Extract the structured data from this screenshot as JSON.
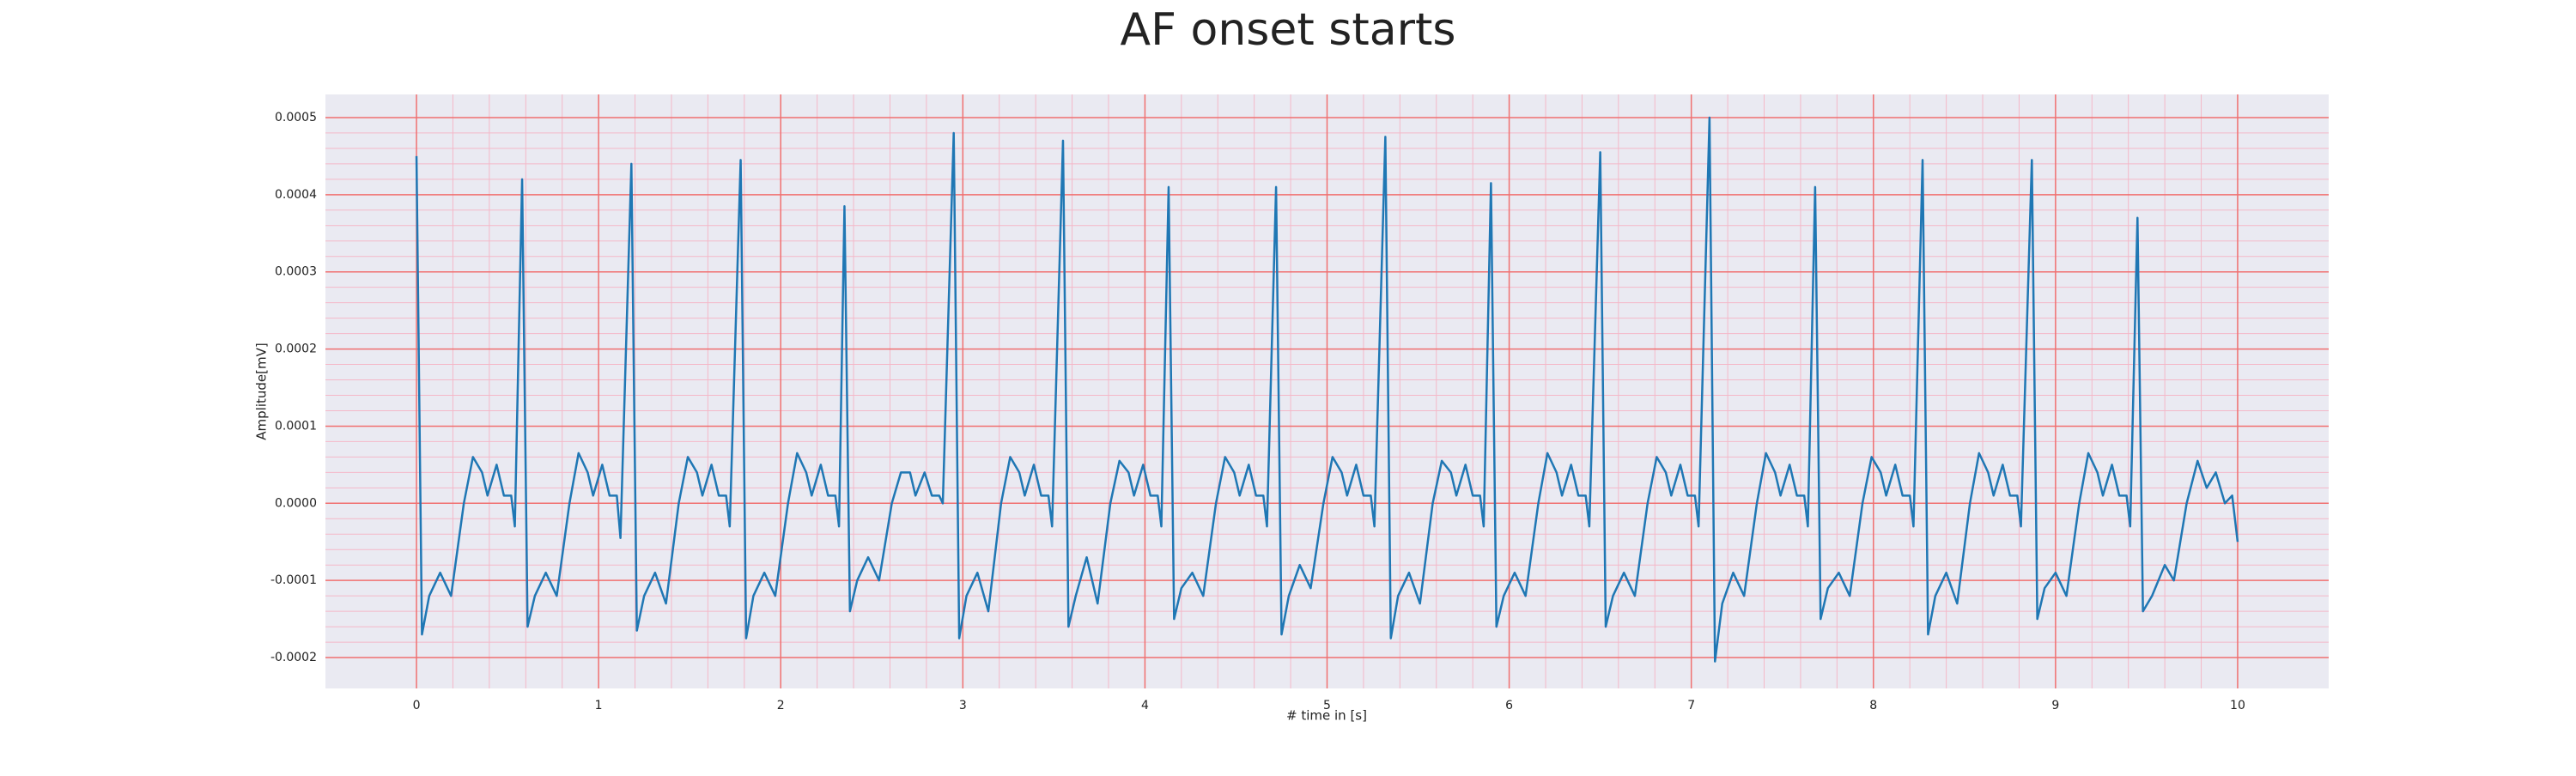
{
  "chart_data": {
    "type": "line",
    "title": "AF onset starts",
    "xlabel": "# time in [s]",
    "ylabel": "Amplitude[mV]",
    "background": "#eaeaf2",
    "grid": true,
    "grid_color": "#f07070",
    "minor_grid_color": "#f4b8c8",
    "minor_divisions": 5,
    "xlim": [
      -0.5,
      10.5
    ],
    "ylim": [
      -0.00024,
      0.00053
    ],
    "xticks": [
      0,
      1,
      2,
      3,
      4,
      5,
      6,
      7,
      8,
      9,
      10
    ],
    "yticks": [
      {
        "value": -0.0002,
        "label": "-0.0002"
      },
      {
        "value": -0.0001,
        "label": "-0.0001"
      },
      {
        "value": 0,
        "label": "0.0000"
      },
      {
        "value": 0.0001,
        "label": "0.0001"
      },
      {
        "value": 0.0002,
        "label": "0.0002"
      },
      {
        "value": 0.0003,
        "label": "0.0003"
      },
      {
        "value": 0.0004,
        "label": "0.0004"
      },
      {
        "value": 0.0005,
        "label": "0.0005"
      }
    ],
    "series": [
      {
        "color": "#1f77b4",
        "x": [
          0,
          0.03,
          0.07,
          0.13,
          0.19,
          0.26,
          0.31,
          0.36,
          0.39,
          0.44,
          0.48,
          0.52,
          0.54,
          0.58,
          0.61,
          0.65,
          0.71,
          0.77,
          0.84,
          0.89,
          0.94,
          0.97,
          1.02,
          1.06,
          1.1,
          1.12,
          1.18,
          1.21,
          1.25,
          1.31,
          1.37,
          1.44,
          1.49,
          1.54,
          1.57,
          1.62,
          1.66,
          1.7,
          1.72,
          1.78,
          1.81,
          1.85,
          1.91,
          1.97,
          2.04,
          2.09,
          2.14,
          2.17,
          2.22,
          2.26,
          2.3,
          2.32,
          2.35,
          2.38,
          2.42,
          2.48,
          2.54,
          2.61,
          2.66,
          2.71,
          2.74,
          2.79,
          2.83,
          2.87,
          2.89,
          2.95,
          2.98,
          3.02,
          3.08,
          3.14,
          3.21,
          3.26,
          3.31,
          3.34,
          3.39,
          3.43,
          3.47,
          3.49,
          3.55,
          3.58,
          3.62,
          3.68,
          3.74,
          3.81,
          3.86,
          3.91,
          3.94,
          3.99,
          4.03,
          4.07,
          4.09,
          4.13,
          4.16,
          4.2,
          4.26,
          4.32,
          4.39,
          4.44,
          4.49,
          4.52,
          4.57,
          4.61,
          4.65,
          4.67,
          4.72,
          4.75,
          4.79,
          4.85,
          4.91,
          4.98,
          5.03,
          5.08,
          5.11,
          5.16,
          5.2,
          5.24,
          5.26,
          5.32,
          5.35,
          5.39,
          5.45,
          5.51,
          5.58,
          5.63,
          5.68,
          5.71,
          5.76,
          5.8,
          5.84,
          5.86,
          5.9,
          5.93,
          5.97,
          6.03,
          6.09,
          6.16,
          6.21,
          6.26,
          6.29,
          6.34,
          6.38,
          6.42,
          6.44,
          6.5,
          6.53,
          6.57,
          6.63,
          6.69,
          6.76,
          6.81,
          6.86,
          6.89,
          6.94,
          6.98,
          7.02,
          7.04,
          7.1,
          7.13,
          7.17,
          7.23,
          7.29,
          7.36,
          7.41,
          7.46,
          7.49,
          7.54,
          7.58,
          7.62,
          7.64,
          7.68,
          7.71,
          7.75,
          7.81,
          7.87,
          7.94,
          7.99,
          8.04,
          8.07,
          8.12,
          8.16,
          8.2,
          8.22,
          8.27,
          8.3,
          8.34,
          8.4,
          8.46,
          8.53,
          8.58,
          8.63,
          8.66,
          8.71,
          8.75,
          8.79,
          8.81,
          8.87,
          8.9,
          8.94,
          9.0,
          9.06,
          9.13,
          9.18,
          9.23,
          9.26,
          9.31,
          9.35,
          9.39,
          9.41,
          9.45,
          9.48,
          9.53,
          9.6,
          9.65,
          9.72,
          9.78,
          9.83,
          9.88,
          9.93,
          9.97,
          10.0
        ],
        "values": [
          0.00045,
          -0.00017,
          -0.00012,
          -9e-05,
          -0.00012,
          0,
          6e-05,
          4e-05,
          1e-05,
          5e-05,
          1e-05,
          1e-05,
          -3e-05,
          0.00042,
          -0.00016,
          -0.00012,
          -9e-05,
          -0.00012,
          0,
          6.5e-05,
          4e-05,
          1e-05,
          5e-05,
          1e-05,
          1e-05,
          -4.5e-05,
          0.00044,
          -0.000165,
          -0.00012,
          -9e-05,
          -0.00013,
          0,
          6e-05,
          4e-05,
          1e-05,
          5e-05,
          1e-05,
          1e-05,
          -3e-05,
          0.000445,
          -0.000175,
          -0.00012,
          -9e-05,
          -0.00012,
          0,
          6.5e-05,
          4e-05,
          1e-05,
          5e-05,
          1e-05,
          1e-05,
          -3e-05,
          0.000385,
          -0.00014,
          -0.0001,
          -7e-05,
          -0.0001,
          0,
          4e-05,
          4e-05,
          1e-05,
          4e-05,
          1e-05,
          1e-05,
          0,
          0.00048,
          -0.000175,
          -0.00012,
          -9e-05,
          -0.00014,
          0,
          6e-05,
          4e-05,
          1e-05,
          5e-05,
          1e-05,
          1e-05,
          -3e-05,
          0.00047,
          -0.00016,
          -0.00012,
          -7e-05,
          -0.00013,
          0,
          5.5e-05,
          4e-05,
          1e-05,
          5e-05,
          1e-05,
          1e-05,
          -3e-05,
          0.00041,
          -0.00015,
          -0.00011,
          -9e-05,
          -0.00012,
          0,
          6e-05,
          4e-05,
          1e-05,
          5e-05,
          1e-05,
          1e-05,
          -3e-05,
          0.00041,
          -0.00017,
          -0.00012,
          -8e-05,
          -0.00011,
          0,
          6e-05,
          4e-05,
          1e-05,
          5e-05,
          1e-05,
          1e-05,
          -3e-05,
          0.000475,
          -0.000175,
          -0.00012,
          -9e-05,
          -0.00013,
          0,
          5.5e-05,
          4e-05,
          1e-05,
          5e-05,
          1e-05,
          1e-05,
          -3e-05,
          0.000415,
          -0.00016,
          -0.00012,
          -9e-05,
          -0.00012,
          0,
          6.5e-05,
          4e-05,
          1e-05,
          5e-05,
          1e-05,
          1e-05,
          -3e-05,
          0.000455,
          -0.00016,
          -0.00012,
          -9e-05,
          -0.00012,
          0,
          6e-05,
          4e-05,
          1e-05,
          5e-05,
          1e-05,
          1e-05,
          -3e-05,
          0.0005,
          -0.000205,
          -0.00013,
          -9e-05,
          -0.00012,
          0,
          6.5e-05,
          4e-05,
          1e-05,
          5e-05,
          1e-05,
          1e-05,
          -3e-05,
          0.00041,
          -0.00015,
          -0.00011,
          -9e-05,
          -0.00012,
          0,
          6e-05,
          4e-05,
          1e-05,
          5e-05,
          1e-05,
          1e-05,
          -3e-05,
          0.000445,
          -0.00017,
          -0.00012,
          -9e-05,
          -0.00013,
          0,
          6.5e-05,
          4e-05,
          1e-05,
          5e-05,
          1e-05,
          1e-05,
          -3e-05,
          0.000445,
          -0.00015,
          -0.00011,
          -9e-05,
          -0.00012,
          0,
          6.5e-05,
          4e-05,
          1e-05,
          5e-05,
          1e-05,
          1e-05,
          -3e-05,
          0.00037,
          -0.00014,
          -0.00012,
          -8e-05,
          -0.0001,
          0,
          5.5e-05,
          2e-05,
          4e-05,
          0,
          1e-05,
          -5e-05
        ]
      }
    ]
  }
}
